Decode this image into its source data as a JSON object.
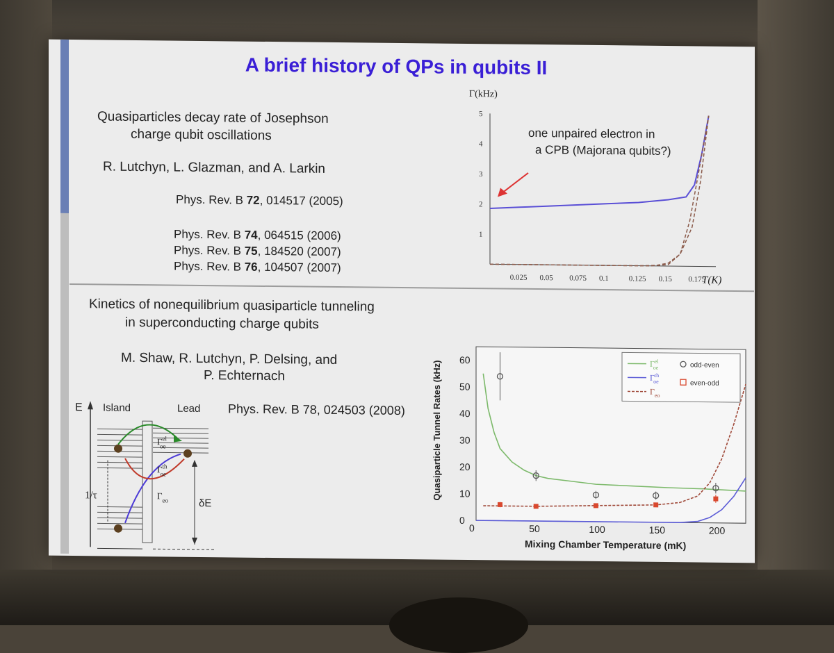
{
  "slide": {
    "title": "A brief history of QPs in qubits II",
    "top": {
      "paper_title_1": "Quasiparticles decay rate of Josephson",
      "paper_title_2": "charge qubit oscillations",
      "authors": "R. Lutchyn, L. Glazman, and A. Larkin",
      "ref_main_prefix": "Phys. Rev. B ",
      "ref_main_vol": "72",
      "ref_main_rest": ", 014517 (2005)",
      "refs": [
        {
          "prefix": "Phys. Rev. B ",
          "vol": "74",
          "rest": ", 064515 (2006)"
        },
        {
          "prefix": "Phys. Rev. B ",
          "vol": "75",
          "rest": ", 184520 (2007)"
        },
        {
          "prefix": "Phys. Rev. B ",
          "vol": "76",
          "rest": ", 104507 (2007)"
        }
      ]
    },
    "bottom": {
      "paper_title_1": "Kinetics of nonequilibrium quasiparticle tunneling",
      "paper_title_2": "in superconducting charge qubits",
      "authors_1": "M. Shaw, R. Lutchyn, P. Delsing, and",
      "authors_2": "P. Echternach",
      "ref": "Phys. Rev. B 78, 024503 (2008)"
    },
    "diagram": {
      "e_label": "E",
      "island_label": "Island",
      "lead_label": "Lead",
      "gamma_oe_el": "Γ",
      "gamma_oe_el_sup": "el",
      "gamma_oe_el_sub": "oe",
      "gamma_oe_th_sup": "th",
      "gamma_oe_th_sub": "oe",
      "gamma_eo_sub": "eo",
      "tau_label": "1/τ",
      "delta_e_label": "δE"
    }
  },
  "chart_data": [
    {
      "type": "line",
      "ylabel": "Γ(kHz)",
      "xlabel": "T(K)",
      "x_ticks": [
        "0.025",
        "0.05",
        "0.075",
        "0.1",
        "0.125",
        "0.15",
        "0.175"
      ],
      "y_ticks": [
        "1",
        "2",
        "3",
        "4",
        "5"
      ],
      "xlim": [
        0,
        0.19
      ],
      "ylim": [
        0,
        5
      ],
      "annotation_1": "one unpaired electron in",
      "annotation_2": "a CPB (Majorana qubits?)",
      "series": [
        {
          "x": [
            0,
            0.025,
            0.05,
            0.075,
            0.1,
            0.125,
            0.15,
            0.165,
            0.172,
            0.178,
            0.184
          ],
          "y": [
            1.85,
            1.9,
            1.95,
            2.0,
            2.05,
            2.1,
            2.2,
            2.3,
            2.7,
            3.7,
            5.0
          ],
          "color": "#5a4fd6",
          "style": "solid"
        },
        {
          "x": [
            0,
            0.125,
            0.14,
            0.15,
            0.16,
            0.17,
            0.177,
            0.184
          ],
          "y": [
            0,
            0,
            0.02,
            0.1,
            0.4,
            1.3,
            2.8,
            5.0
          ],
          "color": "#8a5a4a",
          "style": "dashed"
        },
        {
          "x": [
            0,
            0.135,
            0.15,
            0.16,
            0.168,
            0.175,
            0.184
          ],
          "y": [
            0,
            0,
            0.05,
            0.4,
            1.5,
            3.0,
            5.0
          ],
          "color": "#8a5a4a",
          "style": "dashed"
        }
      ]
    },
    {
      "type": "scatter",
      "xlabel": "Mixing Chamber Temperature (mK)",
      "ylabel": "Quasiparticle Tunnel Rates (kHz)",
      "x_ticks": [
        "0",
        "50",
        "100",
        "150",
        "200"
      ],
      "y_ticks": [
        "0",
        "10",
        "20",
        "30",
        "40",
        "50",
        "60"
      ],
      "xlim": [
        0,
        225
      ],
      "ylim": [
        0,
        65
      ],
      "legend": {
        "lines": [
          {
            "label": "Γ",
            "sup": "el",
            "sub": "oe",
            "color": "#7cb96a"
          },
          {
            "label": "Γ",
            "sup": "th",
            "sub": "oe",
            "color": "#5a5ad6"
          },
          {
            "label": "Γ",
            "sup": "",
            "sub": "eo",
            "color": "#a04a3a"
          }
        ],
        "markers": [
          {
            "label": "odd-even",
            "symbol": "circle",
            "color": "#555"
          },
          {
            "label": "even-odd",
            "symbol": "square",
            "color": "#d9482e"
          }
        ]
      },
      "odd_even_points": [
        {
          "x": 20,
          "y": 54,
          "err": 9
        },
        {
          "x": 50,
          "y": 17,
          "err": 2
        },
        {
          "x": 100,
          "y": 10,
          "err": 1.5
        },
        {
          "x": 150,
          "y": 10,
          "err": 1.5
        },
        {
          "x": 200,
          "y": 13,
          "err": 2
        }
      ],
      "even_odd_points": [
        {
          "x": 20,
          "y": 6,
          "err": 1
        },
        {
          "x": 50,
          "y": 5.5,
          "err": 0.5
        },
        {
          "x": 100,
          "y": 6,
          "err": 0.5
        },
        {
          "x": 150,
          "y": 6.5,
          "err": 0.5
        },
        {
          "x": 200,
          "y": 9,
          "err": 1.5
        }
      ],
      "curves": [
        {
          "name": "el_oe",
          "color": "#7cb96a",
          "style": "solid",
          "x": [
            6,
            10,
            15,
            20,
            30,
            40,
            50,
            60,
            80,
            100,
            130,
            160,
            190,
            225
          ],
          "y": [
            55,
            42,
            33,
            27,
            22,
            19,
            17,
            16,
            15,
            14,
            13.5,
            13,
            12.7,
            12
          ]
        },
        {
          "name": "th_oe",
          "color": "#5a5ad6",
          "style": "solid",
          "x": [
            0,
            170,
            185,
            195,
            205,
            215,
            225
          ],
          "y": [
            0,
            0,
            0.5,
            2,
            5,
            10,
            17
          ]
        },
        {
          "name": "eo",
          "color": "#a04a3a",
          "style": "dashed",
          "x": [
            6,
            50,
            100,
            150,
            170,
            185,
            195,
            205,
            215,
            225
          ],
          "y": [
            5.5,
            5.5,
            6,
            6.5,
            7.5,
            10,
            15,
            24,
            37,
            52
          ]
        }
      ]
    }
  ]
}
